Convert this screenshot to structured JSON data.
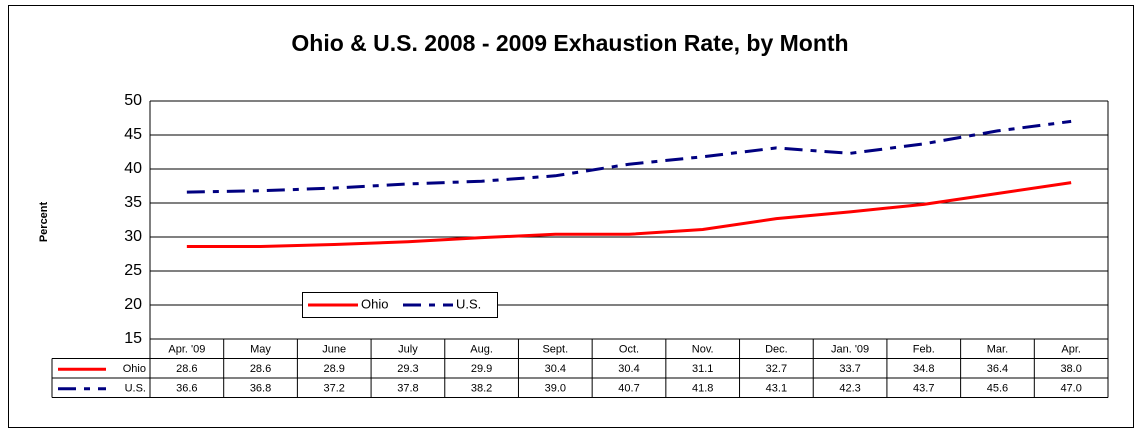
{
  "chart_data": {
    "type": "line",
    "title": "Ohio & U.S. 2008 - 2009 Exhaustion Rate, by Month",
    "y_label": "Percent",
    "categories": [
      "Apr. '09",
      "May",
      "June",
      "July",
      "Aug.",
      "Sept.",
      "Oct.",
      "Nov.",
      "Dec.",
      "Jan. '09",
      "Feb.",
      "Mar.",
      "Apr."
    ],
    "series": [
      {
        "name": "Ohio",
        "color": "#ff0000",
        "values": [
          28.6,
          28.6,
          28.9,
          29.3,
          29.9,
          30.4,
          30.4,
          31.1,
          32.7,
          33.7,
          34.8,
          36.4,
          38.0
        ],
        "value_labels": [
          "28.6",
          "28.6",
          "28.9",
          "29.3",
          "29.9",
          "30.4",
          "30.4",
          "31.1",
          "32.7",
          "33.7",
          "34.8",
          "36.4",
          "38.0"
        ]
      },
      {
        "name": "U.S.",
        "color": "#000080",
        "values": [
          36.6,
          36.8,
          37.2,
          37.8,
          38.2,
          39.0,
          40.7,
          41.8,
          43.1,
          42.3,
          43.7,
          45.6,
          47.0
        ],
        "value_labels": [
          "36.6",
          "36.8",
          "37.2",
          "37.8",
          "38.2",
          "39.0",
          "40.7",
          "41.8",
          "43.1",
          "42.3",
          "43.7",
          "45.6",
          "47.0"
        ]
      }
    ],
    "ylim": [
      15,
      50
    ],
    "yticks": [
      15,
      20,
      25,
      30,
      35,
      40,
      45,
      50
    ],
    "grid": true,
    "data_table": true
  }
}
